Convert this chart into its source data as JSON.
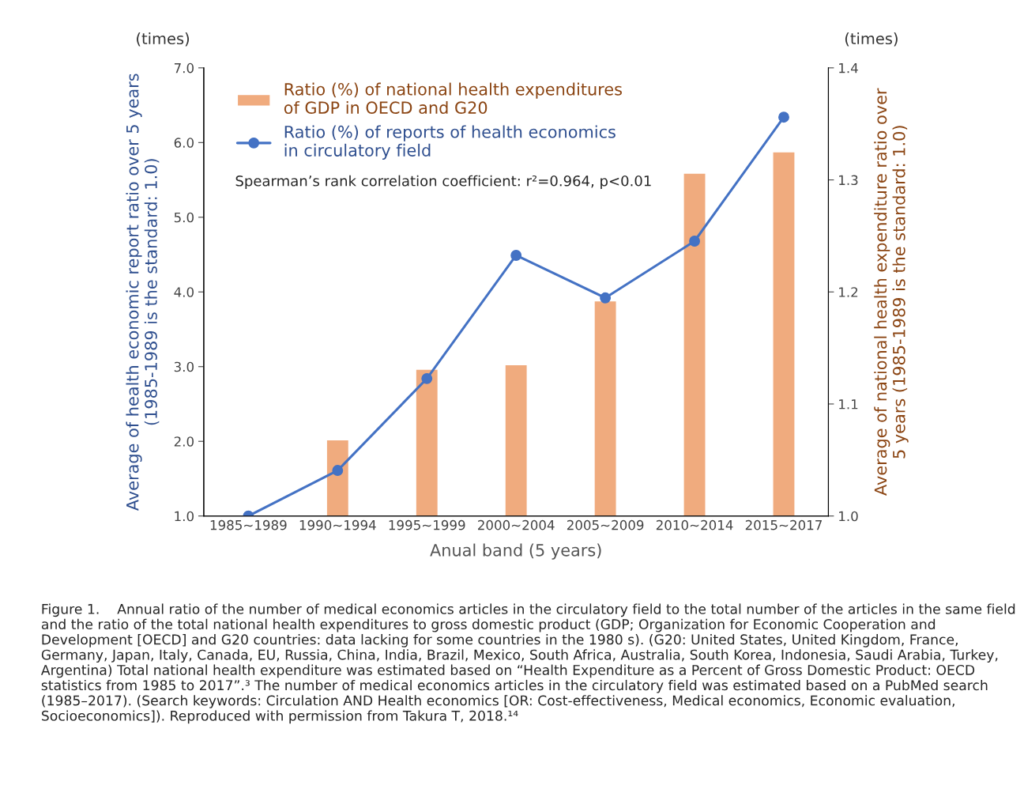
{
  "chart_data": {
    "type": "bar",
    "xlabel": "Anual band (5 years)",
    "ylabel": "Average of health economic report ratio over 5 years\n(1985-1989 is the standard: 1.0)",
    "y2label": "Average of national health expenditure ratio over\n5 years (1985-1989 is the standard: 1.0)",
    "categories": [
      "1985~1989",
      "1990~1994",
      "1995~1999",
      "2000~2004",
      "2005~2009",
      "2010~2014",
      "2015~2017"
    ],
    "series": [
      {
        "name": "Ratio (%) of national health expenditures\nof GDP in OECD and G20",
        "axis": "y2",
        "color": "#f0ab7e",
        "values": [
          null,
          1.068,
          1.131,
          1.135,
          1.192,
          1.306,
          1.325
        ]
      },
      {
        "name": "Ratio (%) of reports of health economics\nin circulatory field",
        "type": "line",
        "axis": "y",
        "color": "#4472c4",
        "marker": "circle",
        "line_style": "solid",
        "values": [
          1.0,
          1.61,
          2.84,
          4.49,
          3.92,
          4.68,
          6.34
        ]
      }
    ],
    "ylim": [
      1.0,
      7.0
    ],
    "yticks": [
      {
        "value": 1,
        "label": "1.0"
      },
      {
        "value": 2,
        "label": "2.0"
      },
      {
        "value": 3,
        "label": "3.0"
      },
      {
        "value": 4,
        "label": "4.0"
      },
      {
        "value": 5,
        "label": "5.0"
      },
      {
        "value": 6,
        "label": "6.0"
      },
      {
        "value": 7,
        "label": "7.0"
      }
    ],
    "y2lim": [
      1.0,
      1.4
    ],
    "y2ticks": [
      {
        "value": 1,
        "label": "1.0"
      },
      1.1,
      1.2,
      1.3,
      1.4
    ],
    "grid": false,
    "legend": "top left",
    "annotations": [
      "(times)",
      "(times)",
      "Spearman’s rank correlation coefficient: r²=0.964, p<0.01",
      "Figure 1.    Annual ratio of the number of medical economics articles in the circulatory field to the total number of the articles in the same field and the ratio of the total national health expenditures to gross domestic product (GDP; Organization for Economic Cooperation and Development [OECD] and G20 countries: data lacking for some countries in the 1980 s). (G20: United States, United Kingdom, France, Germany, Japan, Italy, Canada, EU, Russia, China, India, Brazil, Mexico, South Africa, Australia, South Korea, Indonesia, Saudi Arabia, Turkey, Argentina) Total national health expenditure was estimated based on “Health Expenditure as a Percent of Gross Domestic Product: OECD statistics from 1985 to 2017”.³ The number of medical economics articles in the circulatory field was estimated based on a PubMed search (1985–2017). (Search keywords: Circulation AND Health economics [OR: Cost-effectiveness, Medical economics, Economic evaluation, Socioeconomics]). Reproduced with permission from Takura T, 2018.¹⁴"
    ]
  }
}
